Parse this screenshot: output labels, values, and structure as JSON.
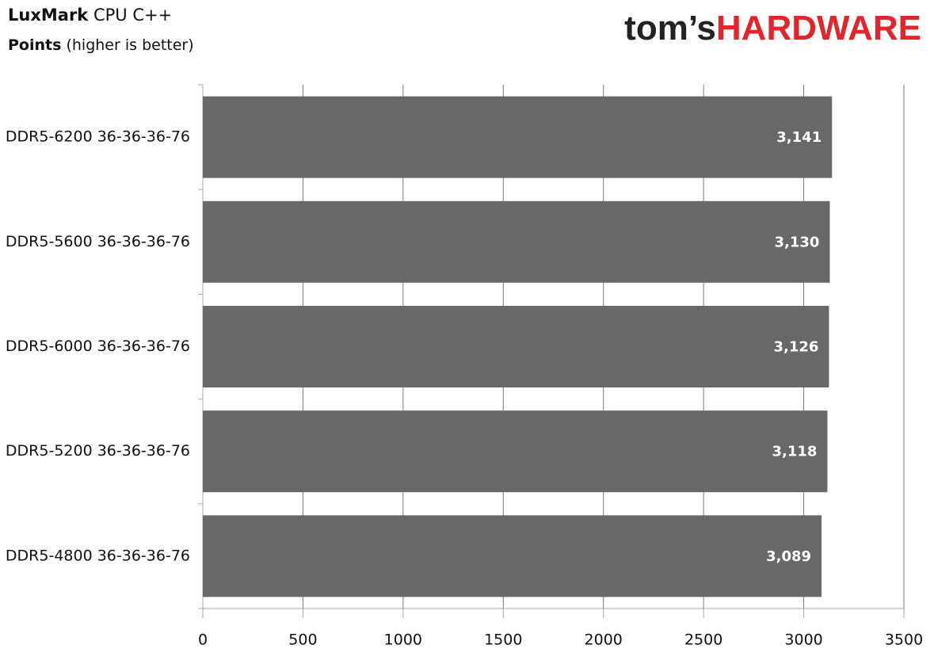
{
  "chart_data": {
    "type": "bar",
    "orientation": "horizontal",
    "title": [
      "LuxMark",
      "CPU C++"
    ],
    "subtitle": [
      "Points",
      "(higher is better)"
    ],
    "categories": [
      "DDR5-6200 36-36-36-76",
      "DDR5-5600 36-36-36-76",
      "DDR5-6000 36-36-36-76",
      "DDR5-5200 36-36-36-76",
      "DDR5-4800 36-36-36-76"
    ],
    "values": [
      3141,
      3130,
      3126,
      3118,
      3089
    ],
    "value_labels": [
      "3,141",
      "3,130",
      "3,126",
      "3,118",
      "3,089"
    ],
    "color": "#696767",
    "xlim": [
      0,
      3500
    ],
    "xticks": [
      0,
      500,
      1000,
      1500,
      2000,
      2500,
      3000,
      3500
    ],
    "grid": true
  },
  "logo": [
    "tom’s",
    "HARDWARE"
  ]
}
